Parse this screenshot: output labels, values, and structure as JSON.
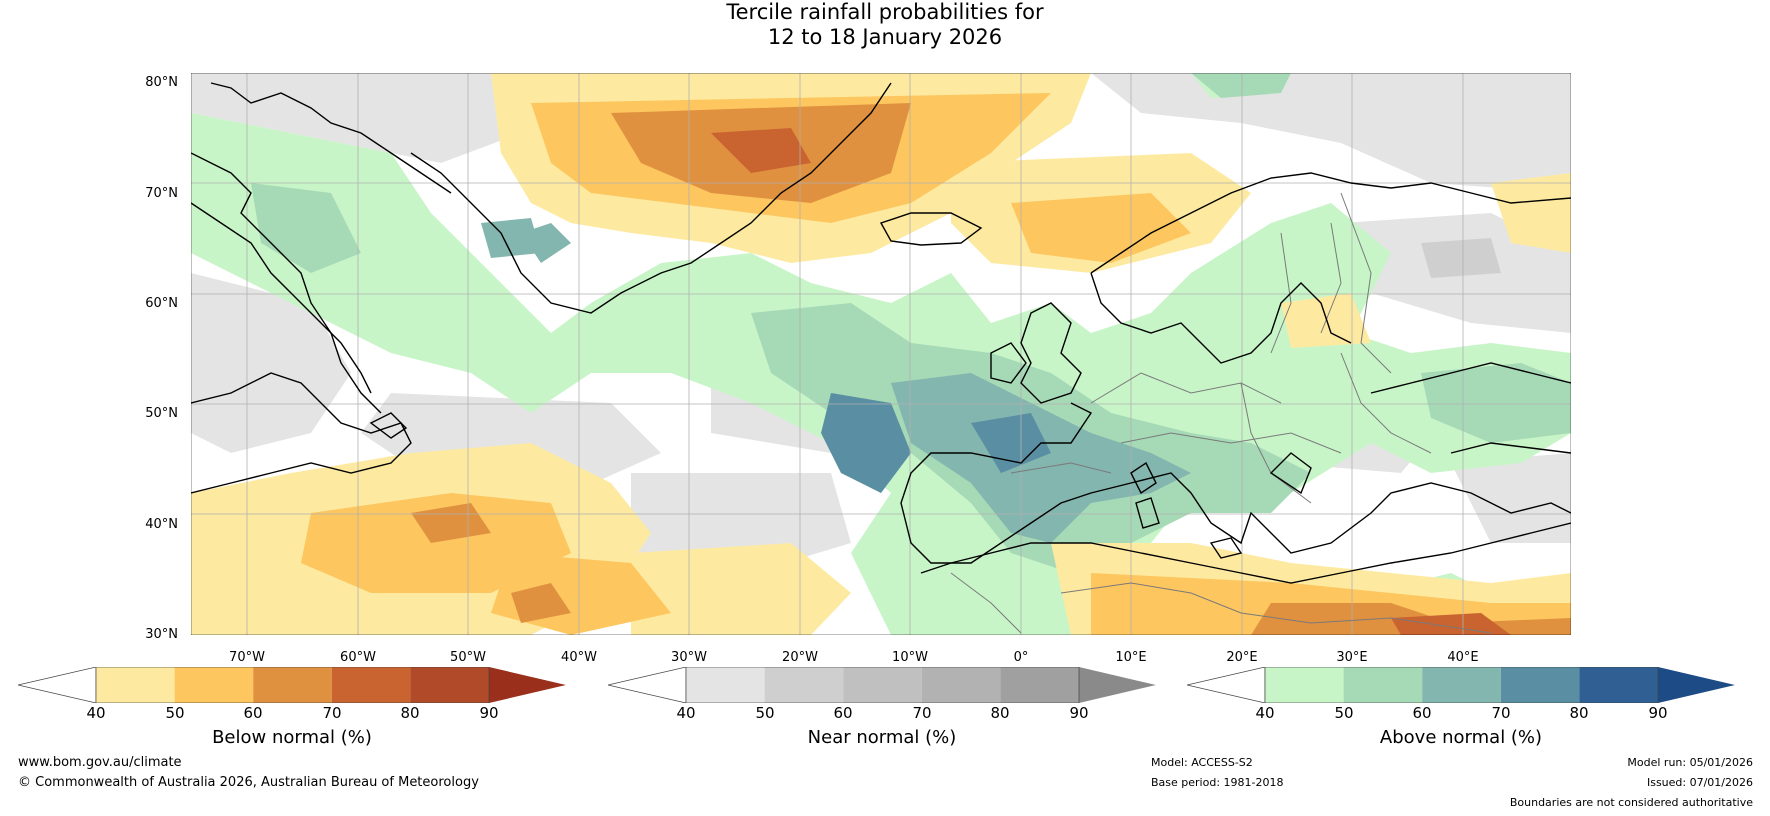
{
  "title": {
    "line1": "Tercile rainfall probabilities for",
    "line2": "12 to 18 January 2026"
  },
  "axes": {
    "lat_labels": [
      "80°N",
      "70°N",
      "60°N",
      "50°N",
      "40°N",
      "30°N"
    ],
    "lon_labels": [
      "70°W",
      "60°W",
      "50°W",
      "40°W",
      "30°W",
      "20°W",
      "10°W",
      "0°",
      "10°E",
      "20°E",
      "30°E",
      "40°E"
    ]
  },
  "legends": [
    {
      "name": "below",
      "title": "Below normal (%)",
      "ticks": [
        "40",
        "50",
        "60",
        "70",
        "80",
        "90"
      ],
      "colors": [
        "#ffffff",
        "#fdeaa0",
        "#fdc65f",
        "#e0913f",
        "#c96330",
        "#b04a28",
        "#9a2f1c"
      ]
    },
    {
      "name": "near",
      "title": "Near normal (%)",
      "ticks": [
        "40",
        "50",
        "60",
        "70",
        "80",
        "90"
      ],
      "colors": [
        "#ffffff",
        "#e4e4e4",
        "#cfcfcf",
        "#c0c0c0",
        "#b2b2b2",
        "#a0a0a0",
        "#8a8a8a"
      ]
    },
    {
      "name": "above",
      "title": "Above normal (%)",
      "ticks": [
        "40",
        "50",
        "60",
        "70",
        "80",
        "90"
      ],
      "colors": [
        "#ffffff",
        "#c8f5c8",
        "#a6d9b6",
        "#83b6ae",
        "#5a8fa3",
        "#2f5f93",
        "#1d4b85"
      ]
    }
  ],
  "footer": {
    "website": "www.bom.gov.au/climate",
    "copyright": "© Commonwealth of Australia 2026, Australian Bureau of Meteorology",
    "model": "Model: ACCESS-S2",
    "base_period": "Base period: 1981-2018",
    "model_run": "Model run: 05/01/2026",
    "issued": "Issued: 07/01/2026",
    "disclaimer": "Boundaries are not considered authoritative"
  },
  "colors": {
    "below": "#e0913f",
    "below_light": "#fdeaa0",
    "below_mid": "#fdc65f",
    "below_dark": "#c96330",
    "near": "#e4e4e4",
    "near_mid": "#cfcfcf",
    "above": "#c8f5c8",
    "above_mid": "#a6d9b6",
    "above_dark": "#83b6ae",
    "above_deep": "#5a8fa3",
    "coast": "#000000",
    "border": "#7a7a7a"
  }
}
